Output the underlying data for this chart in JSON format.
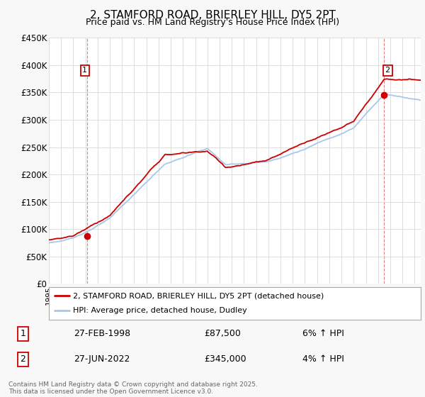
{
  "title": "2, STAMFORD ROAD, BRIERLEY HILL, DY5 2PT",
  "subtitle": "Price paid vs. HM Land Registry's House Price Index (HPI)",
  "ylim": [
    0,
    450000
  ],
  "yticks": [
    0,
    50000,
    100000,
    150000,
    200000,
    250000,
    300000,
    350000,
    400000,
    450000
  ],
  "ytick_labels": [
    "£0",
    "£50K",
    "£100K",
    "£150K",
    "£200K",
    "£250K",
    "£300K",
    "£350K",
    "£400K",
    "£450K"
  ],
  "hpi_color": "#a8c8e8",
  "price_color": "#cc0000",
  "marker_color": "#cc0000",
  "vline_color": "#e08080",
  "sale1_year": 1998.15,
  "sale1_price": 87500,
  "sale2_year": 2022.48,
  "sale2_price": 345000,
  "sale1_date": "27-FEB-1998",
  "sale2_date": "27-JUN-2022",
  "sale1_hpi_pct": "6% ↑ HPI",
  "sale2_hpi_pct": "4% ↑ HPI",
  "legend_line1": "2, STAMFORD ROAD, BRIERLEY HILL, DY5 2PT (detached house)",
  "legend_line2": "HPI: Average price, detached house, Dudley",
  "footnote": "Contains HM Land Registry data © Crown copyright and database right 2025.\nThis data is licensed under the Open Government Licence v3.0.",
  "bg_color": "#f8f8f8",
  "plot_bg_color": "#ffffff",
  "grid_color": "#d8d8d8"
}
